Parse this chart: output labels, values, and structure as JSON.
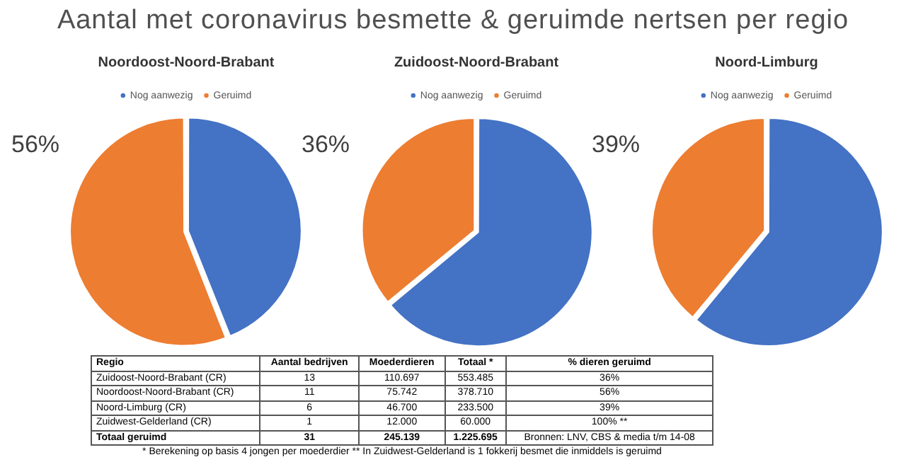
{
  "chart_data": [
    {
      "type": "other",
      "title": "Aantal met coronavirus besmette & geruimde nertsen per regio"
    },
    {
      "type": "pie",
      "title": "Noordoost-Noord-Brabant",
      "categories": [
        "Nog aanwezig",
        "Geruimd"
      ],
      "values": [
        44,
        56
      ],
      "colors": [
        "#4472c4",
        "#ed7d31"
      ],
      "value_labels": [
        null,
        "56%"
      ],
      "legend": "top"
    },
    {
      "type": "pie",
      "title": "Zuidoost-Noord-Brabant",
      "categories": [
        "Nog aanwezig",
        "Geruimd"
      ],
      "values": [
        64,
        36
      ],
      "colors": [
        "#4472c4",
        "#ed7d31"
      ],
      "value_labels": [
        null,
        "36%"
      ],
      "legend": "top"
    },
    {
      "type": "pie",
      "title": "Noord-Limburg",
      "categories": [
        "Nog aanwezig",
        "Geruimd"
      ],
      "values": [
        61,
        39
      ],
      "colors": [
        "#4472c4",
        "#ed7d31"
      ],
      "value_labels": [
        null,
        "39%"
      ],
      "legend": "top"
    },
    {
      "type": "other",
      "annotations": [
        "Regio",
        "Aantal bedrijven",
        "Moederdieren",
        "Totaal *",
        "% dieren geruimd",
        "Zuidoost-Noord-Brabant (CR)",
        "13",
        "110.697",
        "553.485",
        "36%",
        "Noordoost-Noord-Brabant (CR)",
        "11",
        "75.742",
        "378.710",
        "56%",
        "Noord-Limburg (CR)",
        "6",
        "46.700",
        "233.500",
        "39%",
        "Zuidwest-Gelderland (CR)",
        "1",
        "12.000",
        "60.000",
        "100% **",
        "Totaal geruimd",
        "31",
        "245.139",
        "1.225.695",
        "Bronnen: LNV, CBS & media t/m 14-08",
        "* Berekening op basis 4 jongen per moederdier  ** In Zuidwest-Gelderland is 1 fokkerij besmet die inmiddels is geruimd"
      ]
    }
  ]
}
